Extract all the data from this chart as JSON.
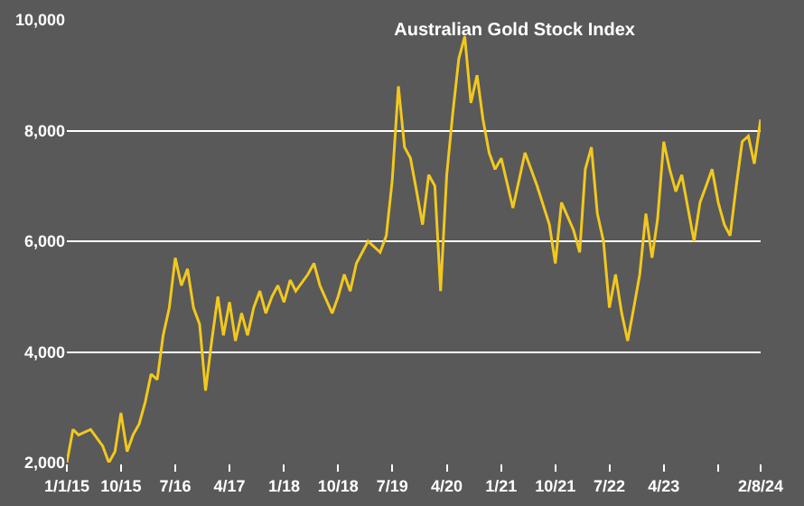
{
  "chart_data": {
    "type": "line",
    "title": "Australian Gold Stock Index",
    "x": [
      "2015-01",
      "2015-02",
      "2015-03",
      "2015-05",
      "2015-07",
      "2015-08",
      "2015-09",
      "2015-10",
      "2015-11",
      "2015-12",
      "2016-01",
      "2016-02",
      "2016-03",
      "2016-04",
      "2016-05",
      "2016-06",
      "2016-07",
      "2016-08",
      "2016-09",
      "2016-10",
      "2016-11",
      "2016-12",
      "2017-01",
      "2017-02",
      "2017-03",
      "2017-04",
      "2017-05",
      "2017-06",
      "2017-07",
      "2017-08",
      "2017-09",
      "2017-10",
      "2017-11",
      "2017-12",
      "2018-01",
      "2018-02",
      "2018-03",
      "2018-05",
      "2018-06",
      "2018-07",
      "2018-09",
      "2018-10",
      "2018-11",
      "2018-12",
      "2019-01",
      "2019-03",
      "2019-05",
      "2019-06",
      "2019-07",
      "2019-08",
      "2019-09",
      "2019-10",
      "2019-11",
      "2019-12",
      "2020-01",
      "2020-02",
      "2020-03",
      "2020-04",
      "2020-05",
      "2020-06",
      "2020-07",
      "2020-08",
      "2020-09",
      "2020-10",
      "2020-11",
      "2020-12",
      "2021-01",
      "2021-03",
      "2021-05",
      "2021-07",
      "2021-09",
      "2021-10",
      "2021-11",
      "2022-01",
      "2022-02",
      "2022-03",
      "2022-04",
      "2022-05",
      "2022-06",
      "2022-07",
      "2022-08",
      "2022-09",
      "2022-10",
      "2022-11",
      "2022-12",
      "2023-01",
      "2023-02",
      "2023-03",
      "2023-04",
      "2023-05",
      "2023-06",
      "2023-07",
      "2023-08",
      "2023-09",
      "2023-10",
      "2023-11",
      "2023-12",
      "2024-01",
      "2024-02",
      "2024-03",
      "2024-04",
      "2024-05",
      "2024-06",
      "2024-07",
      "2024-08-02"
    ],
    "series": [
      {
        "color": "#f2c81e",
        "values": [
          2000,
          2600,
          2500,
          2600,
          2300,
          2000,
          2200,
          2900,
          2200,
          2500,
          2700,
          3100,
          3600,
          3500,
          4300,
          4800,
          5700,
          5200,
          5500,
          4800,
          4500,
          3300,
          4200,
          5000,
          4300,
          4900,
          4200,
          4700,
          4300,
          4800,
          5100,
          4700,
          5000,
          5200,
          4900,
          5300,
          5100,
          5400,
          5600,
          5200,
          4700,
          5000,
          5400,
          5100,
          5600,
          6000,
          5800,
          6100,
          7100,
          8800,
          7700,
          7500,
          6900,
          6300,
          7200,
          7000,
          5100,
          7200,
          8300,
          9300,
          9700,
          8500,
          9000,
          8200,
          7600,
          7300,
          7500,
          6600,
          7600,
          7000,
          6300,
          5600,
          6700,
          6200,
          5800,
          7300,
          7700,
          6500,
          6000,
          4800,
          5400,
          4700,
          4200,
          4800,
          5400,
          6500,
          5700,
          6400,
          7800,
          7300,
          6900,
          7200,
          6600,
          6000,
          6700,
          7000,
          7300,
          6700,
          6300,
          6100,
          7000,
          7800,
          7900,
          7400,
          8200
        ]
      }
    ],
    "xlim": [
      "2015-01-01",
      "2024-08-02"
    ],
    "xticks": [
      {
        "value": "2015-01-01",
        "label": "1/1/15"
      },
      {
        "value": "2015-10-01",
        "label": "10/15"
      },
      {
        "value": "2016-07-01",
        "label": "7/16"
      },
      {
        "value": "2017-04-01",
        "label": "4/17"
      },
      {
        "value": "2018-01-01",
        "label": "1/18"
      },
      {
        "value": "2018-10-01",
        "label": "10/18"
      },
      {
        "value": "2019-07-01",
        "label": "7/19"
      },
      {
        "value": "2020-04-01",
        "label": "4/20"
      },
      {
        "value": "2021-01-01",
        "label": "1/21"
      },
      {
        "value": "2021-10-01",
        "label": "10/21"
      },
      {
        "value": "2022-07-01",
        "label": "7/22"
      },
      {
        "value": "2023-04-01",
        "label": "4/23"
      },
      {
        "value": "2024-01-01",
        "label": null
      },
      {
        "value": "2024-08-02",
        "label": "2/8/24"
      }
    ],
    "ylim": [
      2000,
      10000
    ],
    "yticks": [
      {
        "value": 2000,
        "label": "2,000"
      },
      {
        "value": 4000,
        "label": "4,000"
      },
      {
        "value": 6000,
        "label": "6,000"
      },
      {
        "value": 8000,
        "label": "8,000"
      },
      {
        "value": 10000,
        "label": "10,000"
      }
    ],
    "grid": "y",
    "marker": "none",
    "line_style": "solid"
  }
}
